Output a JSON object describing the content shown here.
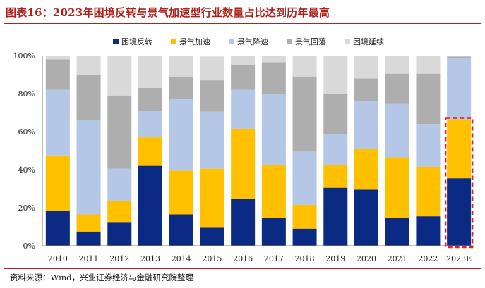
{
  "title": "图表16：2023年困境反转与景气加速型行业数量占比达到历年最高",
  "source": "资料来源：Wind，兴业证券经济与金融研究院整理",
  "colors": {
    "title_red": "#b0211c",
    "highlight_border": "#e0201b",
    "axis": "#7f7f7f"
  },
  "chart_data": {
    "type": "bar",
    "stacked": true,
    "title": "",
    "xlabel": "",
    "ylabel": "",
    "ylim": [
      0,
      100
    ],
    "yticks": [
      "0%",
      "20%",
      "40%",
      "60%",
      "80%",
      "100%"
    ],
    "legend_position": "top",
    "grid": false,
    "categories": [
      "2010",
      "2011",
      "2012",
      "2013",
      "2014",
      "2015",
      "2016",
      "2017",
      "2018",
      "2019",
      "2020",
      "2021",
      "2022",
      "2023E"
    ],
    "highlight_category": "2023E",
    "series": [
      {
        "name": "困境反转",
        "color": "#0b2a83",
        "values": [
          18.5,
          7.5,
          12.5,
          42,
          16.5,
          9.5,
          24.5,
          14.5,
          9,
          30.5,
          29.5,
          14.5,
          15.5,
          35.5
        ]
      },
      {
        "name": "景气加速",
        "color": "#ffc000",
        "values": [
          29,
          9,
          11,
          15,
          23,
          31,
          37,
          28,
          12.5,
          12,
          21.5,
          32,
          26,
          31
        ]
      },
      {
        "name": "景气降速",
        "color": "#b4c7e7",
        "values": [
          34.5,
          49.5,
          17,
          14,
          37.5,
          30,
          20.5,
          37.5,
          28,
          16,
          25,
          28.5,
          22.5,
          32
        ]
      },
      {
        "name": "景气回落",
        "color": "#aeaeae",
        "values": [
          16,
          24,
          38.5,
          12,
          12,
          16.5,
          13,
          16.5,
          39.5,
          21.5,
          12,
          15.5,
          26.5,
          1
        ]
      },
      {
        "name": "困境延续",
        "color": "#d9d9d9",
        "values": [
          2,
          10,
          21,
          17,
          11,
          12.5,
          5,
          3.5,
          11,
          20,
          12,
          9.5,
          9.5,
          0.5
        ]
      }
    ]
  }
}
